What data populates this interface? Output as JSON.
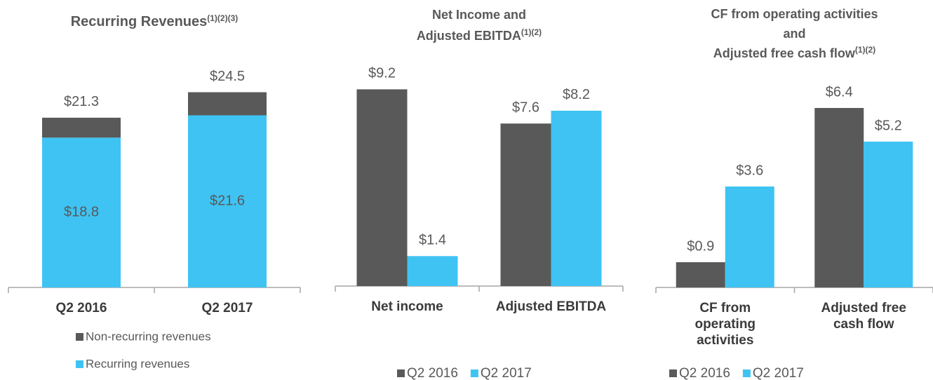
{
  "chart_data": [
    {
      "type": "stacked_bar",
      "title": [
        "Recurring Revenues"
      ],
      "title_note": "(1)(2)(3)",
      "categories": [
        "Q2 2016",
        "Q2 2017"
      ],
      "series": [
        {
          "name": "Non-recurring revenues",
          "color": "#595959",
          "values": [
            2.5,
            2.9
          ]
        },
        {
          "name": "Recurring revenues",
          "color": "#3fc3f3",
          "values": [
            18.8,
            21.6
          ],
          "value_labels": [
            "$18.8",
            "$21.6"
          ]
        }
      ],
      "total_labels": [
        "$21.3",
        "$24.5"
      ],
      "ylim": [
        0,
        30
      ],
      "legend": "vertical"
    },
    {
      "type": "bar",
      "title": [
        "Net Income and",
        "Adjusted EBITDA"
      ],
      "title_note": "(1)(2)",
      "categories": [
        "Net income",
        "Adjusted EBITDA"
      ],
      "series": [
        {
          "name": "Q2 2016",
          "color": "#595959",
          "values": [
            9.2,
            7.6
          ],
          "value_labels": [
            "$9.2",
            "$7.6"
          ]
        },
        {
          "name": "Q2 2017",
          "color": "#3fc3f3",
          "values": [
            1.4,
            8.2
          ],
          "value_labels": [
            "$1.4",
            "$8.2"
          ]
        }
      ],
      "ylim": [
        0,
        10
      ],
      "legend": "horizontal"
    },
    {
      "type": "bar",
      "title": [
        "CF from operating activities",
        "and",
        "Adjusted free cash flow"
      ],
      "title_note": "(1)(2)",
      "categories": [
        "CF from operating activities",
        "Adjusted free cash flow"
      ],
      "series": [
        {
          "name": "Q2 2016",
          "color": "#595959",
          "values": [
            0.9,
            6.4
          ],
          "value_labels": [
            "$0.9",
            "$6.4"
          ]
        },
        {
          "name": "Q2 2017",
          "color": "#3fc3f3",
          "values": [
            3.6,
            5.2
          ],
          "value_labels": [
            "$3.6",
            "$5.2"
          ]
        }
      ],
      "ylim": [
        0,
        8
      ],
      "legend": "horizontal"
    }
  ]
}
